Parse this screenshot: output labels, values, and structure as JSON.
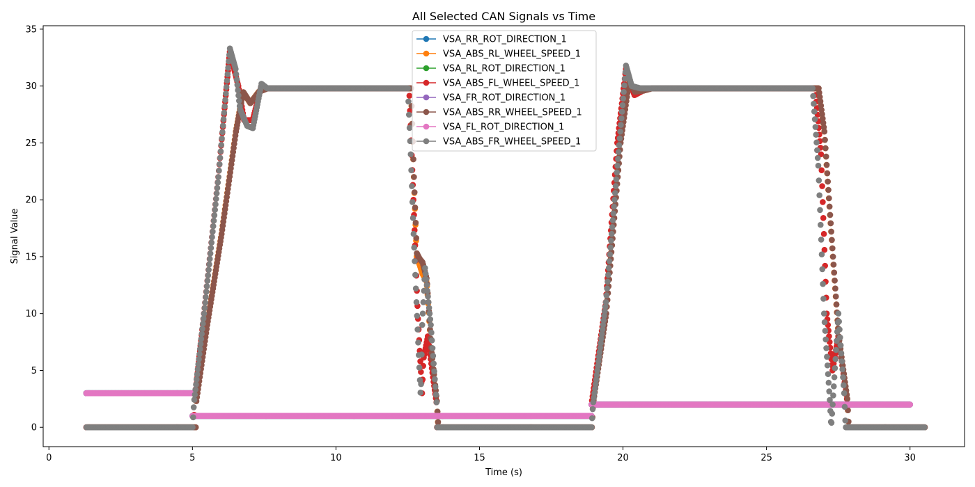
{
  "chart_data": {
    "type": "scatter",
    "title": "All Selected CAN Signals vs Time",
    "xlabel": "Time (s)",
    "ylabel": "Signal Value",
    "xlim": [
      -0.2,
      31.9
    ],
    "ylim": [
      -1.7,
      35.3
    ],
    "xticks": [
      0,
      5,
      10,
      15,
      20,
      25,
      30
    ],
    "yticks": [
      0,
      5,
      10,
      15,
      20,
      25,
      30,
      35
    ],
    "grid": false,
    "legend_position": "top-center",
    "series": [
      {
        "name": "VSA_RR_ROT_DIRECTION_1",
        "color": "#1f77b4",
        "kind": "rot",
        "offset": 0,
        "segments": [
          [
            1.3,
            5.0,
            3.0
          ],
          [
            5.0,
            18.9,
            1.0
          ],
          [
            18.9,
            30.0,
            2.0
          ]
        ]
      },
      {
        "name": "VSA_ABS_RL_WHEEL_SPEED_1",
        "color": "#ff7f0e",
        "kind": "speed",
        "offset": 0.12,
        "knots": [
          [
            1.3,
            0
          ],
          [
            5.1,
            0
          ],
          [
            5.12,
            2.3
          ],
          [
            5.5,
            9
          ],
          [
            6.0,
            17
          ],
          [
            6.5,
            26
          ],
          [
            6.75,
            29.5
          ],
          [
            7.0,
            28.5
          ],
          [
            7.3,
            29.5
          ],
          [
            7.6,
            29.8
          ],
          [
            12.6,
            29.8
          ],
          [
            12.7,
            22
          ],
          [
            12.8,
            15
          ],
          [
            12.9,
            14.3
          ],
          [
            13.0,
            13.5
          ],
          [
            13.15,
            12.8
          ],
          [
            13.3,
            7
          ],
          [
            13.5,
            2.3
          ],
          [
            13.55,
            0
          ],
          [
            18.9,
            0
          ],
          [
            18.95,
            2.2
          ],
          [
            19.4,
            10
          ],
          [
            19.9,
            25
          ],
          [
            20.2,
            30.5
          ],
          [
            20.4,
            29.5
          ],
          [
            20.7,
            29.6
          ],
          [
            21.0,
            29.8
          ],
          [
            26.8,
            29.8
          ],
          [
            27.0,
            26
          ],
          [
            27.3,
            15
          ],
          [
            27.5,
            8
          ],
          [
            27.8,
            2.5
          ],
          [
            27.85,
            0
          ],
          [
            30.5,
            0
          ]
        ]
      },
      {
        "name": "VSA_RL_ROT_DIRECTION_1",
        "color": "#2ca02c",
        "kind": "rot",
        "offset": 0.05,
        "segments": [
          [
            1.3,
            5.0,
            3.0
          ],
          [
            5.0,
            18.9,
            1.0
          ],
          [
            18.9,
            30.0,
            2.0
          ]
        ]
      },
      {
        "name": "VSA_ABS_FL_WHEEL_SPEED_1",
        "color": "#d62728",
        "kind": "speed",
        "offset": 0.0,
        "knots": [
          [
            1.3,
            0
          ],
          [
            5.05,
            0
          ],
          [
            5.07,
            2.2
          ],
          [
            5.4,
            10
          ],
          [
            5.9,
            22
          ],
          [
            6.3,
            33
          ],
          [
            6.6,
            30
          ],
          [
            6.8,
            27
          ],
          [
            7.1,
            27
          ],
          [
            7.4,
            30
          ],
          [
            7.6,
            29.8
          ],
          [
            12.55,
            29.8
          ],
          [
            12.7,
            20
          ],
          [
            12.85,
            10
          ],
          [
            13.0,
            3
          ],
          [
            13.05,
            6
          ],
          [
            13.2,
            8
          ],
          [
            13.4,
            4
          ],
          [
            13.5,
            2.2
          ],
          [
            13.52,
            0
          ],
          [
            18.9,
            0
          ],
          [
            18.9,
            2.0
          ],
          [
            19.4,
            11
          ],
          [
            19.8,
            25
          ],
          [
            20.1,
            31.5
          ],
          [
            20.4,
            29.2
          ],
          [
            20.7,
            29.6
          ],
          [
            21.0,
            29.8
          ],
          [
            26.7,
            29.8
          ],
          [
            26.9,
            24
          ],
          [
            27.1,
            10
          ],
          [
            27.3,
            5
          ],
          [
            27.5,
            8
          ],
          [
            27.8,
            2.5
          ],
          [
            27.82,
            0
          ],
          [
            30.5,
            0
          ]
        ]
      },
      {
        "name": "VSA_FR_ROT_DIRECTION_1",
        "color": "#9467bd",
        "kind": "rot",
        "offset": 0.1,
        "segments": [
          [
            1.3,
            5.0,
            3.0
          ],
          [
            5.0,
            18.9,
            1.0
          ],
          [
            18.9,
            30.0,
            2.0
          ]
        ]
      },
      {
        "name": "VSA_ABS_RR_WHEEL_SPEED_1",
        "color": "#8c564b",
        "kind": "speed",
        "offset": 0.18,
        "knots": [
          [
            1.3,
            0
          ],
          [
            5.1,
            0
          ],
          [
            5.12,
            2.3
          ],
          [
            5.5,
            9
          ],
          [
            6.0,
            17
          ],
          [
            6.5,
            26
          ],
          [
            6.75,
            29.5
          ],
          [
            7.0,
            28.5
          ],
          [
            7.3,
            29.5
          ],
          [
            7.6,
            29.8
          ],
          [
            12.6,
            29.8
          ],
          [
            12.7,
            22
          ],
          [
            12.8,
            15.3
          ],
          [
            12.9,
            14.8
          ],
          [
            13.0,
            14.5
          ],
          [
            13.15,
            13
          ],
          [
            13.3,
            7
          ],
          [
            13.5,
            2.3
          ],
          [
            13.55,
            0
          ],
          [
            18.9,
            0
          ],
          [
            18.95,
            2.2
          ],
          [
            19.4,
            10
          ],
          [
            19.9,
            25
          ],
          [
            20.2,
            30.5
          ],
          [
            20.4,
            29.5
          ],
          [
            20.7,
            29.6
          ],
          [
            21.0,
            29.8
          ],
          [
            26.8,
            29.8
          ],
          [
            27.0,
            26
          ],
          [
            27.3,
            15
          ],
          [
            27.5,
            8
          ],
          [
            27.8,
            2.5
          ],
          [
            27.85,
            0
          ],
          [
            30.5,
            0
          ]
        ]
      },
      {
        "name": "VSA_FL_ROT_DIRECTION_1",
        "color": "#e377c2",
        "kind": "rot",
        "offset": 0.15,
        "segments": [
          [
            1.3,
            5.0,
            3.0
          ],
          [
            5.0,
            18.9,
            1.0
          ],
          [
            18.9,
            30.0,
            2.0
          ]
        ]
      },
      {
        "name": "VSA_ABS_FR_WHEEL_SPEED_1",
        "color": "#7f7f7f",
        "kind": "speed",
        "offset": 0.05,
        "knots": [
          [
            1.3,
            0
          ],
          [
            5.0,
            0
          ],
          [
            5.05,
            2.2
          ],
          [
            5.4,
            10
          ],
          [
            5.9,
            22
          ],
          [
            6.3,
            33.3
          ],
          [
            6.5,
            31.5
          ],
          [
            6.65,
            28
          ],
          [
            6.9,
            26.5
          ],
          [
            7.1,
            26.3
          ],
          [
            7.4,
            30.2
          ],
          [
            7.6,
            29.8
          ],
          [
            12.5,
            29.8
          ],
          [
            12.6,
            24
          ],
          [
            12.7,
            17
          ],
          [
            12.85,
            8
          ],
          [
            12.95,
            2.5
          ],
          [
            13.0,
            9
          ],
          [
            13.1,
            14
          ],
          [
            13.3,
            9
          ],
          [
            13.5,
            2.2
          ],
          [
            13.52,
            0
          ],
          [
            18.9,
            0
          ],
          [
            18.95,
            2.0
          ],
          [
            19.4,
            11
          ],
          [
            19.9,
            26
          ],
          [
            20.1,
            31.8
          ],
          [
            20.3,
            30
          ],
          [
            20.6,
            29.8
          ],
          [
            26.6,
            29.8
          ],
          [
            26.8,
            23
          ],
          [
            27.0,
            10
          ],
          [
            27.2,
            2.4
          ],
          [
            27.25,
            0
          ],
          [
            27.5,
            10
          ],
          [
            27.7,
            3
          ],
          [
            27.75,
            0
          ],
          [
            30.5,
            0
          ]
        ]
      }
    ]
  }
}
